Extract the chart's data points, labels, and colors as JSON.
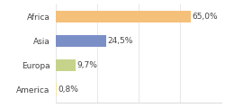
{
  "categories": [
    "Africa",
    "Asia",
    "Europa",
    "America"
  ],
  "values": [
    65.0,
    24.5,
    9.7,
    0.8
  ],
  "labels": [
    "65,0%",
    "24,5%",
    "9,7%",
    "0,8%"
  ],
  "bar_colors": [
    "#f5c07a",
    "#7b8fc7",
    "#c5d48a",
    "#f5e6a0"
  ],
  "background_color": "#ffffff",
  "xlim": [
    0,
    80
  ],
  "bar_height": 0.5,
  "label_fontsize": 6.5,
  "tick_fontsize": 6.5,
  "figsize": [
    2.8,
    1.2
  ],
  "dpi": 100
}
